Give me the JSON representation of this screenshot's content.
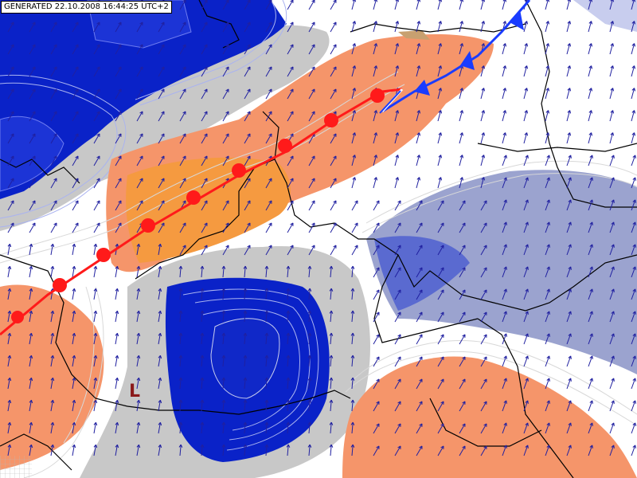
{
  "header": {
    "generated_stamp": "GENERATED 22.10.2008 16:44:25 UTC+2"
  },
  "map": {
    "pressure_low_label": "L",
    "pressure_low_color": "#8b1a1a",
    "warm_front_color": "#ff1a1a",
    "cold_front_color": "#1a3cff",
    "wind_arrow_color": "#2020a0",
    "border_color": "#000000",
    "palette": {
      "deep_blue": "#0a22c8",
      "mid_blue": "#5a6ad0",
      "slate_blue": "#9ba3cf",
      "pale_blue": "#c8cdee",
      "grey": "#c8c8c8",
      "orange_light": "#f5956a",
      "orange_dark": "#f59a40"
    }
  }
}
